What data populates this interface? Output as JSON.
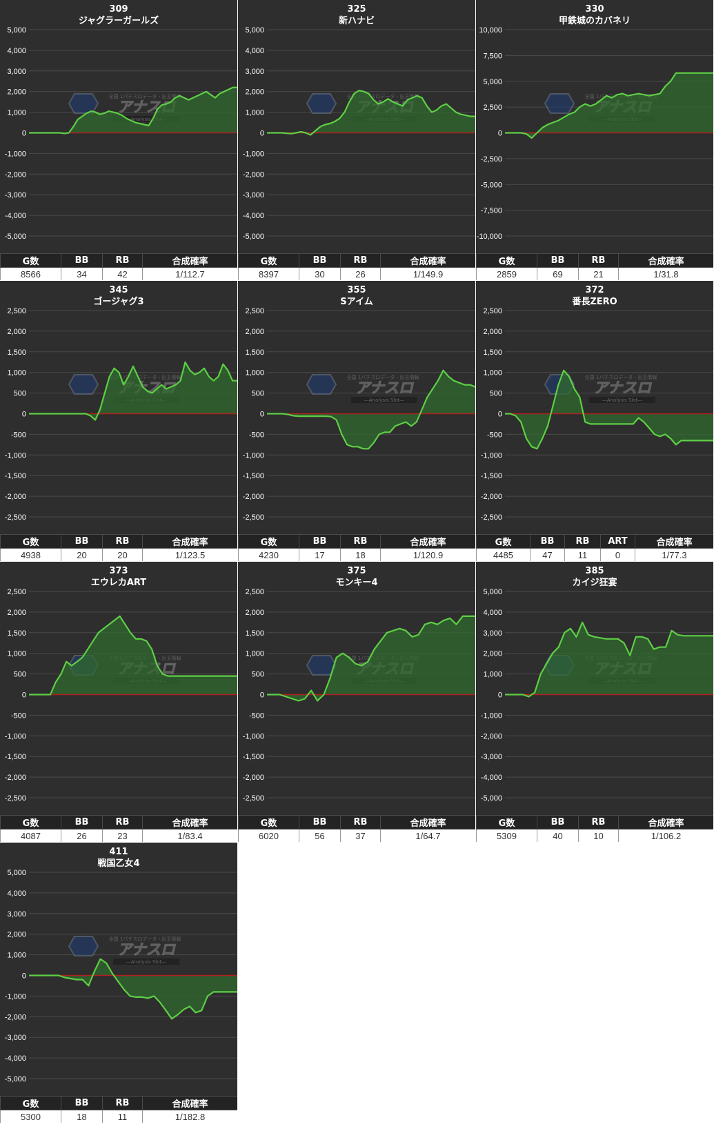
{
  "watermark": {
    "brand": "アナスロ",
    "tagline": "—Analysis Slot—",
    "top_text": "全国 1パチスロデータ・出玉情報"
  },
  "colors": {
    "panel_bg": "#2e2e2e",
    "grid": "#4a4a4a",
    "zero_line": "#b11f1f",
    "line": "#5ecf45",
    "fill": "#2f6a2f"
  },
  "machines": [
    {
      "number": "309",
      "name": "ジャグラーガールズ",
      "stats": {
        "headers": [
          "G数",
          "BB",
          "RB",
          "合成確率"
        ],
        "values": [
          "8566",
          "34",
          "42",
          "1/112.7"
        ]
      },
      "chart_data": {
        "type": "area",
        "ylim": [
          -5000,
          5000
        ],
        "yticks": [
          -5000,
          -4000,
          -3000,
          -2000,
          -1000,
          0,
          1000,
          2000,
          3000,
          4000,
          5000
        ],
        "tick_labels": [
          "-5,000",
          "-4,000",
          "-3,000",
          "-2,000",
          "-1,000",
          "0",
          "1,000",
          "2,000",
          "3,000",
          "4,000",
          "5,000"
        ],
        "values": [
          0,
          0,
          0,
          0,
          0,
          0,
          0,
          0,
          -30,
          0,
          300,
          650,
          800,
          950,
          1050,
          1000,
          900,
          950,
          1050,
          1000,
          950,
          850,
          700,
          600,
          500,
          450,
          400,
          350,
          700,
          1150,
          1350,
          1400,
          1500,
          1700,
          1800,
          1700,
          1600,
          1700,
          1800,
          1900,
          2000,
          1850,
          1700,
          1900,
          2000,
          2100,
          2200,
          2200
        ]
      }
    },
    {
      "number": "325",
      "name": "新ハナビ",
      "stats": {
        "headers": [
          "G数",
          "BB",
          "RB",
          "合成確率"
        ],
        "values": [
          "8397",
          "30",
          "26",
          "1/149.9"
        ]
      },
      "chart_data": {
        "type": "area",
        "ylim": [
          -5000,
          5000
        ],
        "yticks": [
          -5000,
          -4000,
          -3000,
          -2000,
          -1000,
          0,
          1000,
          2000,
          3000,
          4000,
          5000
        ],
        "tick_labels": [
          "-5,000",
          "-4,000",
          "-3,000",
          "-2,000",
          "-1,000",
          "0",
          "1,000",
          "2,000",
          "3,000",
          "4,000",
          "5,000"
        ],
        "values": [
          0,
          0,
          0,
          0,
          -20,
          -40,
          0,
          50,
          0,
          -100,
          100,
          300,
          400,
          450,
          550,
          700,
          1000,
          1500,
          1900,
          2050,
          2000,
          1900,
          1600,
          1400,
          1500,
          1650,
          1500,
          1400,
          1300,
          1600,
          1700,
          1800,
          1700,
          1300,
          1000,
          1100,
          1300,
          1400,
          1200,
          1000,
          900,
          850,
          800,
          800
        ]
      }
    },
    {
      "number": "330",
      "name": "甲鉄城のカバネリ",
      "stats": {
        "headers": [
          "G数",
          "BB",
          "RB",
          "合成確率"
        ],
        "values": [
          "2859",
          "69",
          "21",
          "1/31.8"
        ]
      },
      "chart_data": {
        "type": "area",
        "ylim": [
          -10000,
          10000
        ],
        "yticks": [
          -10000,
          -7500,
          -5000,
          -2500,
          0,
          2500,
          5000,
          7500,
          10000
        ],
        "tick_labels": [
          "-10,000",
          "-7,500",
          "-5,000",
          "-2,500",
          "0",
          "2,500",
          "5,000",
          "7,500",
          "10,000"
        ],
        "values": [
          0,
          0,
          0,
          0,
          -100,
          -500,
          0,
          500,
          800,
          1000,
          1200,
          1500,
          1800,
          2000,
          2500,
          2800,
          2600,
          2800,
          3200,
          3600,
          3400,
          3700,
          3800,
          3600,
          3700,
          3800,
          3700,
          3600,
          3700,
          3800,
          4500,
          5000,
          5800,
          5800,
          5800,
          5800,
          5800,
          5800,
          5800,
          5800
        ]
      }
    },
    {
      "number": "345",
      "name": "ゴージャグ3",
      "stats": {
        "headers": [
          "G数",
          "BB",
          "RB",
          "合成確率"
        ],
        "values": [
          "4938",
          "20",
          "20",
          "1/123.5"
        ]
      },
      "chart_data": {
        "type": "area",
        "ylim": [
          -2500,
          2500
        ],
        "yticks": [
          -2500,
          -2000,
          -1500,
          -1000,
          -500,
          0,
          500,
          1000,
          1500,
          2000,
          2500
        ],
        "tick_labels": [
          "-2,500",
          "-2,000",
          "-1,500",
          "-1,000",
          "-500",
          "0",
          "500",
          "1,000",
          "1,500",
          "2,000",
          "2,500"
        ],
        "values": [
          0,
          0,
          0,
          0,
          0,
          0,
          0,
          0,
          0,
          0,
          0,
          0,
          0,
          -50,
          -150,
          100,
          500,
          900,
          1100,
          1000,
          700,
          900,
          1150,
          900,
          650,
          550,
          500,
          600,
          700,
          600,
          650,
          700,
          800,
          1250,
          1050,
          950,
          1000,
          1100,
          900,
          800,
          900,
          1200,
          1050,
          800,
          800
        ]
      }
    },
    {
      "number": "355",
      "name": "Sアイム",
      "stats": {
        "headers": [
          "G数",
          "BB",
          "RB",
          "合成確率"
        ],
        "values": [
          "4230",
          "17",
          "18",
          "1/120.9"
        ]
      },
      "chart_data": {
        "type": "area",
        "ylim": [
          -2500,
          2500
        ],
        "yticks": [
          -2500,
          -2000,
          -1500,
          -1000,
          -500,
          0,
          500,
          1000,
          1500,
          2000,
          2500
        ],
        "tick_labels": [
          "-2,500",
          "-2,000",
          "-1,500",
          "-1,000",
          "-500",
          "0",
          "500",
          "1,000",
          "1,500",
          "2,000",
          "2,500"
        ],
        "values": [
          0,
          0,
          0,
          0,
          -20,
          -50,
          -60,
          -60,
          -60,
          -60,
          -60,
          -60,
          -70,
          -150,
          -500,
          -750,
          -800,
          -800,
          -850,
          -850,
          -700,
          -500,
          -450,
          -450,
          -300,
          -250,
          -200,
          -300,
          -200,
          100,
          400,
          600,
          800,
          1050,
          900,
          800,
          750,
          700,
          700,
          650
        ]
      }
    },
    {
      "number": "372",
      "name": "番長ZERO",
      "stats": {
        "headers": [
          "G数",
          "BB",
          "RB",
          "ART",
          "合成確率"
        ],
        "values": [
          "4485",
          "47",
          "11",
          "0",
          "1/77.3"
        ]
      },
      "chart_data": {
        "type": "area",
        "ylim": [
          -2500,
          2500
        ],
        "yticks": [
          -2500,
          -2000,
          -1500,
          -1000,
          -500,
          0,
          500,
          1000,
          1500,
          2000,
          2500
        ],
        "tick_labels": [
          "-2,500",
          "-2,000",
          "-1,500",
          "-1,000",
          "-500",
          "0",
          "500",
          "1,000",
          "1,500",
          "2,000",
          "2,500"
        ],
        "values": [
          0,
          0,
          -50,
          -200,
          -600,
          -800,
          -850,
          -600,
          -300,
          200,
          700,
          1050,
          900,
          600,
          400,
          -200,
          -250,
          -250,
          -250,
          -250,
          -250,
          -250,
          -250,
          -250,
          -250,
          -100,
          -200,
          -350,
          -500,
          -550,
          -500,
          -600,
          -750,
          -650,
          -650,
          -650,
          -650,
          -650,
          -650,
          -650
        ]
      }
    },
    {
      "number": "373",
      "name": "エウレカART",
      "stats": {
        "headers": [
          "G数",
          "BB",
          "RB",
          "合成確率"
        ],
        "values": [
          "4087",
          "26",
          "23",
          "1/83.4"
        ]
      },
      "chart_data": {
        "type": "area",
        "ylim": [
          -2500,
          2500
        ],
        "yticks": [
          -2500,
          -2000,
          -1500,
          -1000,
          -500,
          0,
          500,
          1000,
          1500,
          2000,
          2500
        ],
        "tick_labels": [
          "-2,500",
          "-2,000",
          "-1,500",
          "-1,000",
          "-500",
          "0",
          "500",
          "1,000",
          "1,500",
          "2,000",
          "2,500"
        ],
        "values": [
          0,
          0,
          0,
          0,
          0,
          300,
          500,
          800,
          700,
          800,
          900,
          1100,
          1300,
          1500,
          1600,
          1700,
          1800,
          1900,
          1700,
          1500,
          1350,
          1350,
          1300,
          1100,
          700,
          500,
          450,
          450,
          450,
          450,
          450,
          450,
          450,
          450,
          450,
          450,
          450,
          450,
          450,
          450
        ]
      }
    },
    {
      "number": "375",
      "name": "モンキー4",
      "stats": {
        "headers": [
          "G数",
          "BB",
          "RB",
          "合成確率"
        ],
        "values": [
          "6020",
          "56",
          "37",
          "1/64.7"
        ]
      },
      "chart_data": {
        "type": "area",
        "ylim": [
          -2500,
          2500
        ],
        "yticks": [
          -2500,
          -2000,
          -1500,
          -1000,
          -500,
          0,
          500,
          1000,
          1500,
          2000,
          2500
        ],
        "tick_labels": [
          "-2,500",
          "-2,000",
          "-1,500",
          "-1,000",
          "-500",
          "0",
          "500",
          "1,000",
          "1,500",
          "2,000",
          "2,500"
        ],
        "values": [
          0,
          0,
          0,
          -50,
          -100,
          -150,
          -100,
          100,
          -150,
          0,
          400,
          900,
          1000,
          900,
          750,
          700,
          800,
          1100,
          1300,
          1500,
          1550,
          1600,
          1550,
          1400,
          1450,
          1700,
          1750,
          1700,
          1800,
          1850,
          1700,
          1900,
          1900,
          1900
        ]
      }
    },
    {
      "number": "385",
      "name": "カイジ狂宴",
      "stats": {
        "headers": [
          "G数",
          "BB",
          "RB",
          "合成確率"
        ],
        "values": [
          "5309",
          "40",
          "10",
          "1/106.2"
        ]
      },
      "chart_data": {
        "type": "area",
        "ylim": [
          -5000,
          5000
        ],
        "yticks": [
          -5000,
          -4000,
          -3000,
          -2000,
          -1000,
          0,
          1000,
          2000,
          3000,
          4000,
          5000
        ],
        "tick_labels": [
          "-5,000",
          "-4,000",
          "-3,000",
          "-2,000",
          "-1,000",
          "0",
          "1,000",
          "2,000",
          "3,000",
          "4,000",
          "5,000"
        ],
        "values": [
          0,
          0,
          0,
          0,
          -100,
          100,
          1000,
          1500,
          2000,
          2300,
          3000,
          3200,
          2800,
          3500,
          2900,
          2800,
          2750,
          2700,
          2700,
          2700,
          2500,
          1900,
          2800,
          2800,
          2700,
          2200,
          2300,
          2300,
          3100,
          2900,
          2850,
          2850,
          2850,
          2850,
          2850,
          2850
        ]
      }
    },
    {
      "number": "411",
      "name": "戦国乙女4",
      "stats": {
        "headers": [
          "G数",
          "BB",
          "RB",
          "合成確率"
        ],
        "values": [
          "5300",
          "18",
          "11",
          "1/182.8"
        ]
      },
      "chart_data": {
        "type": "area",
        "ylim": [
          -5000,
          5000
        ],
        "yticks": [
          -5000,
          -4000,
          -3000,
          -2000,
          -1000,
          0,
          1000,
          2000,
          3000,
          4000,
          5000
        ],
        "tick_labels": [
          "-5,000",
          "-4,000",
          "-3,000",
          "-2,000",
          "-1,000",
          "0",
          "1,000",
          "2,000",
          "3,000",
          "4,000",
          "5,000"
        ],
        "values": [
          0,
          0,
          0,
          0,
          0,
          0,
          -100,
          -150,
          -200,
          -200,
          -500,
          200,
          800,
          600,
          100,
          -300,
          -700,
          -1000,
          -1050,
          -1050,
          -1100,
          -1000,
          -1300,
          -1700,
          -2100,
          -1900,
          -1650,
          -1500,
          -1800,
          -1700,
          -1000,
          -800,
          -800,
          -800,
          -800,
          -800
        ]
      }
    }
  ]
}
